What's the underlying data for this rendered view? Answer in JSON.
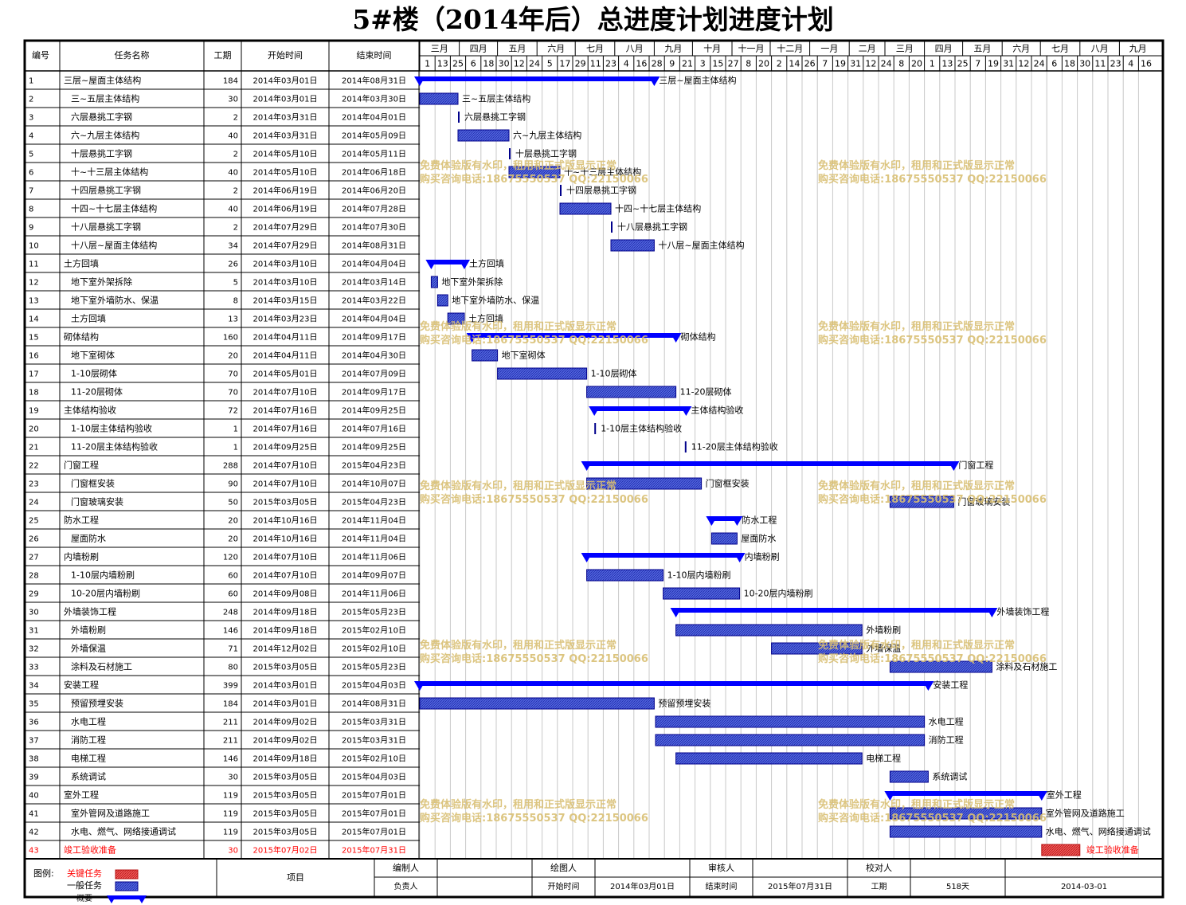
{
  "title": "5#楼（2014年后）总进度计划进度计划",
  "header": {
    "id": "编号",
    "name": "任务名称",
    "duration": "工期",
    "start": "开始时间",
    "end": "结束时间"
  },
  "timeline": {
    "origin": "2014-03-01",
    "end": "2015-09-30",
    "months": [
      {
        "label": "三月",
        "start": "2014-03-01",
        "end": "2014-04-01"
      },
      {
        "label": "四月",
        "start": "2014-04-01",
        "end": "2014-05-01"
      },
      {
        "label": "五月",
        "start": "2014-05-01",
        "end": "2014-06-01"
      },
      {
        "label": "六月",
        "start": "2014-06-01",
        "end": "2014-07-01"
      },
      {
        "label": "七月",
        "start": "2014-07-01",
        "end": "2014-08-01"
      },
      {
        "label": "八月",
        "start": "2014-08-01",
        "end": "2014-09-01"
      },
      {
        "label": "九月",
        "start": "2014-09-01",
        "end": "2014-10-01"
      },
      {
        "label": "十月",
        "start": "2014-10-01",
        "end": "2014-11-01"
      },
      {
        "label": "十一月",
        "start": "2014-11-01",
        "end": "2014-12-01"
      },
      {
        "label": "十二月",
        "start": "2014-12-01",
        "end": "2015-01-01"
      },
      {
        "label": "一月",
        "start": "2015-01-01",
        "end": "2015-02-01"
      },
      {
        "label": "二月",
        "start": "2015-02-01",
        "end": "2015-03-01"
      },
      {
        "label": "三月",
        "start": "2015-03-01",
        "end": "2015-04-01"
      },
      {
        "label": "四月",
        "start": "2015-04-01",
        "end": "2015-05-01"
      },
      {
        "label": "五月",
        "start": "2015-05-01",
        "end": "2015-06-01"
      },
      {
        "label": "六月",
        "start": "2015-06-01",
        "end": "2015-07-01"
      },
      {
        "label": "七月",
        "start": "2015-07-01",
        "end": "2015-08-01"
      },
      {
        "label": "八月",
        "start": "2015-08-01",
        "end": "2015-09-01"
      },
      {
        "label": "九月",
        "start": "2015-09-01",
        "end": "2015-09-30"
      }
    ],
    "ticks": [
      {
        "label": "1",
        "date": "2014-03-01"
      },
      {
        "label": "13",
        "date": "2014-03-13"
      },
      {
        "label": "25",
        "date": "2014-03-25"
      },
      {
        "label": "6",
        "date": "2014-04-06"
      },
      {
        "label": "18",
        "date": "2014-04-18"
      },
      {
        "label": "30",
        "date": "2014-04-30"
      },
      {
        "label": "12",
        "date": "2014-05-12"
      },
      {
        "label": "24",
        "date": "2014-05-24"
      },
      {
        "label": "5",
        "date": "2014-06-05"
      },
      {
        "label": "17",
        "date": "2014-06-17"
      },
      {
        "label": "29",
        "date": "2014-06-29"
      },
      {
        "label": "11",
        "date": "2014-07-11"
      },
      {
        "label": "23",
        "date": "2014-07-23"
      },
      {
        "label": "4",
        "date": "2014-08-04"
      },
      {
        "label": "16",
        "date": "2014-08-16"
      },
      {
        "label": "28",
        "date": "2014-08-28"
      },
      {
        "label": "9",
        "date": "2014-09-09"
      },
      {
        "label": "21",
        "date": "2014-09-21"
      },
      {
        "label": "3",
        "date": "2014-10-03"
      },
      {
        "label": "15",
        "date": "2014-10-15"
      },
      {
        "label": "27",
        "date": "2014-10-27"
      },
      {
        "label": "8",
        "date": "2014-11-08"
      },
      {
        "label": "20",
        "date": "2014-11-20"
      },
      {
        "label": "2",
        "date": "2014-12-02"
      },
      {
        "label": "14",
        "date": "2014-12-14"
      },
      {
        "label": "26",
        "date": "2014-12-26"
      },
      {
        "label": "7",
        "date": "2015-01-07"
      },
      {
        "label": "19",
        "date": "2015-01-19"
      },
      {
        "label": "31",
        "date": "2015-01-31"
      },
      {
        "label": "12",
        "date": "2015-02-12"
      },
      {
        "label": "24",
        "date": "2015-02-24"
      },
      {
        "label": "8",
        "date": "2015-03-08"
      },
      {
        "label": "20",
        "date": "2015-03-20"
      },
      {
        "label": "1",
        "date": "2015-04-01"
      },
      {
        "label": "13",
        "date": "2015-04-13"
      },
      {
        "label": "25",
        "date": "2015-04-25"
      },
      {
        "label": "7",
        "date": "2015-05-07"
      },
      {
        "label": "19",
        "date": "2015-05-19"
      },
      {
        "label": "31",
        "date": "2015-05-31"
      },
      {
        "label": "12",
        "date": "2015-06-12"
      },
      {
        "label": "24",
        "date": "2015-06-24"
      },
      {
        "label": "6",
        "date": "2015-07-06"
      },
      {
        "label": "18",
        "date": "2015-07-18"
      },
      {
        "label": "30",
        "date": "2015-07-30"
      },
      {
        "label": "11",
        "date": "2015-08-11"
      },
      {
        "label": "23",
        "date": "2015-08-23"
      },
      {
        "label": "4",
        "date": "2015-09-04"
      },
      {
        "label": "16",
        "date": "2015-09-16"
      }
    ]
  },
  "chart_data": {
    "type": "gantt",
    "x_range": [
      "2014-03-01",
      "2015-09-30"
    ],
    "tasks": [
      {
        "id": 1,
        "name": "三层~屋面主体结构",
        "level": 0,
        "duration": 184,
        "start": "2014-03-01",
        "end": "2014-08-31",
        "start_text": "2014年03月01日",
        "end_text": "2014年08月31日",
        "kind": "summary"
      },
      {
        "id": 2,
        "name": "三~五层主体结构",
        "level": 1,
        "duration": 30,
        "start": "2014-03-01",
        "end": "2014-03-30",
        "start_text": "2014年03月01日",
        "end_text": "2014年03月30日",
        "kind": "normal"
      },
      {
        "id": 3,
        "name": "六层悬挑工字钢",
        "level": 1,
        "duration": 2,
        "start": "2014-03-31",
        "end": "2014-04-01",
        "start_text": "2014年03月31日",
        "end_text": "2014年04月01日",
        "kind": "normal"
      },
      {
        "id": 4,
        "name": "六~九层主体结构",
        "level": 1,
        "duration": 40,
        "start": "2014-03-31",
        "end": "2014-05-09",
        "start_text": "2014年03月31日",
        "end_text": "2014年05月09日",
        "kind": "normal"
      },
      {
        "id": 5,
        "name": "十层悬挑工字钢",
        "level": 1,
        "duration": 2,
        "start": "2014-05-10",
        "end": "2014-05-11",
        "start_text": "2014年05月10日",
        "end_text": "2014年05月11日",
        "kind": "normal"
      },
      {
        "id": 6,
        "name": "十~十三层主体结构",
        "level": 1,
        "duration": 40,
        "start": "2014-05-10",
        "end": "2014-06-18",
        "start_text": "2014年05月10日",
        "end_text": "2014年06月18日",
        "kind": "normal"
      },
      {
        "id": 7,
        "name": "十四层悬挑工字钢",
        "level": 1,
        "duration": 2,
        "start": "2014-06-19",
        "end": "2014-06-20",
        "start_text": "2014年06月19日",
        "end_text": "2014年06月20日",
        "kind": "normal"
      },
      {
        "id": 8,
        "name": "十四~十七层主体结构",
        "level": 1,
        "duration": 40,
        "start": "2014-06-19",
        "end": "2014-07-28",
        "start_text": "2014年06月19日",
        "end_text": "2014年07月28日",
        "kind": "normal"
      },
      {
        "id": 9,
        "name": "十八层悬挑工字钢",
        "level": 1,
        "duration": 2,
        "start": "2014-07-29",
        "end": "2014-07-30",
        "start_text": "2014年07月29日",
        "end_text": "2014年07月30日",
        "kind": "normal"
      },
      {
        "id": 10,
        "name": "十八层~屋面主体结构",
        "level": 1,
        "duration": 34,
        "start": "2014-07-29",
        "end": "2014-08-31",
        "start_text": "2014年07月29日",
        "end_text": "2014年08月31日",
        "kind": "normal"
      },
      {
        "id": 11,
        "name": "土方回填",
        "level": 0,
        "duration": 26,
        "start": "2014-03-10",
        "end": "2014-04-04",
        "start_text": "2014年03月10日",
        "end_text": "2014年04月04日",
        "kind": "summary"
      },
      {
        "id": 12,
        "name": "地下室外架拆除",
        "level": 1,
        "duration": 5,
        "start": "2014-03-10",
        "end": "2014-03-14",
        "start_text": "2014年03月10日",
        "end_text": "2014年03月14日",
        "kind": "normal"
      },
      {
        "id": 13,
        "name": "地下室外墙防水、保温",
        "level": 1,
        "duration": 8,
        "start": "2014-03-15",
        "end": "2014-03-22",
        "start_text": "2014年03月15日",
        "end_text": "2014年03月22日",
        "kind": "normal"
      },
      {
        "id": 14,
        "name": "土方回填",
        "level": 1,
        "duration": 13,
        "start": "2014-03-23",
        "end": "2014-04-04",
        "start_text": "2014年03月23日",
        "end_text": "2014年04月04日",
        "kind": "normal"
      },
      {
        "id": 15,
        "name": "砌体结构",
        "level": 0,
        "duration": 160,
        "start": "2014-04-11",
        "end": "2014-09-17",
        "start_text": "2014年04月11日",
        "end_text": "2014年09月17日",
        "kind": "summary"
      },
      {
        "id": 16,
        "name": "地下室砌体",
        "level": 1,
        "duration": 20,
        "start": "2014-04-11",
        "end": "2014-04-30",
        "start_text": "2014年04月11日",
        "end_text": "2014年04月30日",
        "kind": "normal"
      },
      {
        "id": 17,
        "name": "1-10层砌体",
        "level": 1,
        "duration": 70,
        "start": "2014-05-01",
        "end": "2014-07-09",
        "start_text": "2014年05月01日",
        "end_text": "2014年07月09日",
        "kind": "normal"
      },
      {
        "id": 18,
        "name": "11-20层砌体",
        "level": 1,
        "duration": 70,
        "start": "2014-07-10",
        "end": "2014-09-17",
        "start_text": "2014年07月10日",
        "end_text": "2014年09月17日",
        "kind": "normal"
      },
      {
        "id": 19,
        "name": "主体结构验收",
        "level": 0,
        "duration": 72,
        "start": "2014-07-16",
        "end": "2014-09-25",
        "start_text": "2014年07月16日",
        "end_text": "2014年09月25日",
        "kind": "summary"
      },
      {
        "id": 20,
        "name": "1-10层主体结构验收",
        "level": 1,
        "duration": 1,
        "start": "2014-07-16",
        "end": "2014-07-16",
        "start_text": "2014年07月16日",
        "end_text": "2014年07月16日",
        "kind": "normal"
      },
      {
        "id": 21,
        "name": "11-20层主体结构验收",
        "level": 1,
        "duration": 1,
        "start": "2014-09-25",
        "end": "2014-09-25",
        "start_text": "2014年09月25日",
        "end_text": "2014年09月25日",
        "kind": "normal"
      },
      {
        "id": 22,
        "name": "门窗工程",
        "level": 0,
        "duration": 288,
        "start": "2014-07-10",
        "end": "2015-04-23",
        "start_text": "2014年07月10日",
        "end_text": "2015年04月23日",
        "kind": "summary"
      },
      {
        "id": 23,
        "name": "门窗框安装",
        "level": 1,
        "duration": 90,
        "start": "2014-07-10",
        "end": "2014-10-07",
        "start_text": "2014年07月10日",
        "end_text": "2014年10月07日",
        "kind": "normal"
      },
      {
        "id": 24,
        "name": "门窗玻璃安装",
        "level": 1,
        "duration": 50,
        "start": "2015-03-05",
        "end": "2015-04-23",
        "start_text": "2015年03月05日",
        "end_text": "2015年04月23日",
        "kind": "normal"
      },
      {
        "id": 25,
        "name": "防水工程",
        "level": 0,
        "duration": 20,
        "start": "2014-10-16",
        "end": "2014-11-04",
        "start_text": "2014年10月16日",
        "end_text": "2014年11月04日",
        "kind": "summary"
      },
      {
        "id": 26,
        "name": "屋面防水",
        "level": 1,
        "duration": 20,
        "start": "2014-10-16",
        "end": "2014-11-04",
        "start_text": "2014年10月16日",
        "end_text": "2014年11月04日",
        "kind": "normal"
      },
      {
        "id": 27,
        "name": "内墙粉刷",
        "level": 0,
        "duration": 120,
        "start": "2014-07-10",
        "end": "2014-11-06",
        "start_text": "2014年07月10日",
        "end_text": "2014年11月06日",
        "kind": "summary"
      },
      {
        "id": 28,
        "name": "1-10层内墙粉刷",
        "level": 1,
        "duration": 60,
        "start": "2014-07-10",
        "end": "2014-09-07",
        "start_text": "2014年07月10日",
        "end_text": "2014年09月07日",
        "kind": "normal"
      },
      {
        "id": 29,
        "name": "10-20层内墙粉刷",
        "level": 1,
        "duration": 60,
        "start": "2014-09-08",
        "end": "2014-11-06",
        "start_text": "2014年09月08日",
        "end_text": "2014年11月06日",
        "kind": "normal"
      },
      {
        "id": 30,
        "name": "外墙装饰工程",
        "level": 0,
        "duration": 248,
        "start": "2014-09-18",
        "end": "2015-05-23",
        "start_text": "2014年09月18日",
        "end_text": "2015年05月23日",
        "kind": "summary"
      },
      {
        "id": 31,
        "name": "外墙粉刷",
        "level": 1,
        "duration": 146,
        "start": "2014-09-18",
        "end": "2015-02-10",
        "start_text": "2014年09月18日",
        "end_text": "2015年02月10日",
        "kind": "normal"
      },
      {
        "id": 32,
        "name": "外墙保温",
        "level": 1,
        "duration": 71,
        "start": "2014-12-02",
        "end": "2015-02-10",
        "start_text": "2014年12月02日",
        "end_text": "2015年02月10日",
        "kind": "normal"
      },
      {
        "id": 33,
        "name": "涂料及石材施工",
        "level": 1,
        "duration": 80,
        "start": "2015-03-05",
        "end": "2015-05-23",
        "start_text": "2015年03月05日",
        "end_text": "2015年05月23日",
        "kind": "normal"
      },
      {
        "id": 34,
        "name": "安装工程",
        "level": 0,
        "duration": 399,
        "start": "2014-03-01",
        "end": "2015-04-03",
        "start_text": "2014年03月01日",
        "end_text": "2015年04月03日",
        "kind": "summary"
      },
      {
        "id": 35,
        "name": "预留预埋安装",
        "level": 1,
        "duration": 184,
        "start": "2014-03-01",
        "end": "2014-08-31",
        "start_text": "2014年03月01日",
        "end_text": "2014年08月31日",
        "kind": "normal"
      },
      {
        "id": 36,
        "name": "水电工程",
        "level": 1,
        "duration": 211,
        "start": "2014-09-02",
        "end": "2015-03-31",
        "start_text": "2014年09月02日",
        "end_text": "2015年03月31日",
        "kind": "normal"
      },
      {
        "id": 37,
        "name": "消防工程",
        "level": 1,
        "duration": 211,
        "start": "2014-09-02",
        "end": "2015-03-31",
        "start_text": "2014年09月02日",
        "end_text": "2015年03月31日",
        "kind": "normal"
      },
      {
        "id": 38,
        "name": "电梯工程",
        "level": 1,
        "duration": 146,
        "start": "2014-09-18",
        "end": "2015-02-10",
        "start_text": "2014年09月18日",
        "end_text": "2015年02月10日",
        "kind": "normal"
      },
      {
        "id": 39,
        "name": "系统调试",
        "level": 1,
        "duration": 30,
        "start": "2015-03-05",
        "end": "2015-04-03",
        "start_text": "2015年03月05日",
        "end_text": "2015年04月03日",
        "kind": "normal"
      },
      {
        "id": 40,
        "name": "室外工程",
        "level": 0,
        "duration": 119,
        "start": "2015-03-05",
        "end": "2015-07-01",
        "start_text": "2015年03月05日",
        "end_text": "2015年07月01日",
        "kind": "summary"
      },
      {
        "id": 41,
        "name": "室外管网及道路施工",
        "level": 1,
        "duration": 119,
        "start": "2015-03-05",
        "end": "2015-07-01",
        "start_text": "2015年03月05日",
        "end_text": "2015年07月01日",
        "kind": "normal"
      },
      {
        "id": 42,
        "name": "水电、燃气、网络接通调试",
        "level": 1,
        "duration": 119,
        "start": "2015-03-05",
        "end": "2015-07-01",
        "start_text": "2015年03月05日",
        "end_text": "2015年07月01日",
        "kind": "normal"
      },
      {
        "id": 43,
        "name": "竣工验收准备",
        "level": 0,
        "duration": 30,
        "start": "2015-07-02",
        "end": "2015-07-31",
        "start_text": "2015年07月02日",
        "end_text": "2015年07月31日",
        "kind": "critical"
      }
    ]
  },
  "footer": {
    "legend_label": "图例:",
    "legend_critical": "关键任务",
    "legend_normal": "一般任务",
    "legend_summary": "概要",
    "project_label": "项目",
    "row1": [
      "编制人",
      "",
      "绘图人",
      "",
      "审核人",
      "",
      "校对人",
      ""
    ],
    "row2": [
      "负责人",
      "",
      "开始时间",
      "2014年03月01日",
      "结束时间",
      "2015年07月31日",
      "工期",
      "518天",
      "2014-03-01"
    ]
  },
  "watermark": {
    "line1": "免费体验版有水印，租用和正式版显示正常",
    "line2": "购买咨询电话:18675550537 QQ:22150066"
  },
  "colors": {
    "summary": "#0000ff",
    "normal_fill": "#4a5bd6",
    "normal_stroke": "#00008b",
    "critical_fill": "#e83a3a",
    "critical_text": "#ff0000",
    "watermark": "#d9bf73"
  }
}
